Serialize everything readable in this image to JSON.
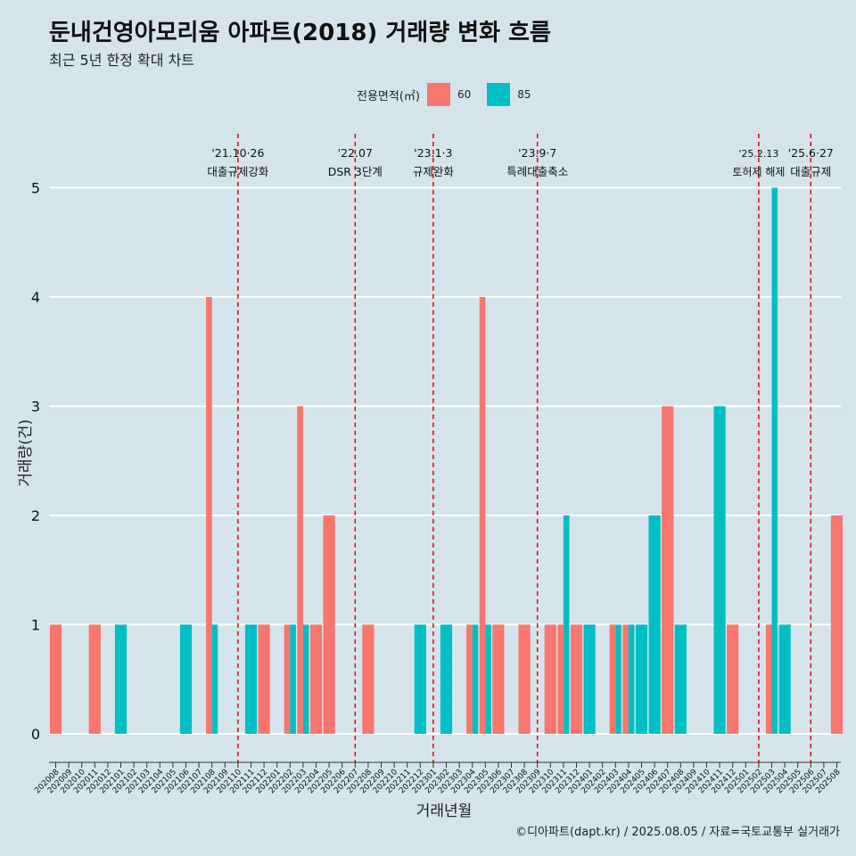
{
  "header": {
    "title": "둔내건영아모리움 아파트(2018) 거래량 변화 흐름",
    "subtitle": "최근 5년 한정 확대 차트"
  },
  "legend": {
    "title": "전용면적(㎡)",
    "items": [
      {
        "label": "60",
        "color": "#F8766D"
      },
      {
        "label": "85",
        "color": "#00BFC4"
      }
    ]
  },
  "caption": "©디아파트(dapt.kr) / 2025.08.05 / 자료=국토교통부 실거래가",
  "chart_data": {
    "type": "bar",
    "xlabel": "거래년월",
    "ylabel": "거래량(건)",
    "ylim": [
      0,
      5
    ],
    "yticks": [
      0,
      1,
      2,
      3,
      4,
      5
    ],
    "grid": true,
    "legend_position": "top",
    "categories": [
      "202008",
      "202009",
      "202010",
      "202011",
      "202012",
      "202101",
      "202102",
      "202103",
      "202104",
      "202105",
      "202106",
      "202107",
      "202108",
      "202109",
      "202110",
      "202111",
      "202112",
      "202201",
      "202202",
      "202203",
      "202204",
      "202205",
      "202206",
      "202207",
      "202208",
      "202209",
      "202210",
      "202211",
      "202212",
      "202301",
      "202302",
      "202303",
      "202304",
      "202305",
      "202306",
      "202307",
      "202308",
      "202309",
      "202310",
      "202311",
      "202312",
      "202401",
      "202402",
      "202403",
      "202404",
      "202405",
      "202406",
      "202407",
      "202408",
      "202409",
      "202410",
      "202411",
      "202412",
      "202501",
      "202502",
      "202503",
      "202504",
      "202505",
      "202506",
      "202507",
      "202508"
    ],
    "bars": [
      {
        "x": "202008",
        "series": "60",
        "value": 1
      },
      {
        "x": "202011",
        "series": "60",
        "value": 1
      },
      {
        "x": "202101",
        "series": "85",
        "value": 1
      },
      {
        "x": "202106",
        "series": "85",
        "value": 1
      },
      {
        "x": "202108",
        "series": "60",
        "value": 4
      },
      {
        "x": "202108",
        "series": "85",
        "value": 1
      },
      {
        "x": "202111",
        "series": "85",
        "value": 1
      },
      {
        "x": "202112",
        "series": "60",
        "value": 1
      },
      {
        "x": "202202",
        "series": "60",
        "value": 1
      },
      {
        "x": "202202",
        "series": "85",
        "value": 1
      },
      {
        "x": "202203",
        "series": "60",
        "value": 3
      },
      {
        "x": "202203",
        "series": "85",
        "value": 1
      },
      {
        "x": "202204",
        "series": "60",
        "value": 1
      },
      {
        "x": "202205",
        "series": "60",
        "value": 2
      },
      {
        "x": "202208",
        "series": "60",
        "value": 1
      },
      {
        "x": "202212",
        "series": "85",
        "value": 1
      },
      {
        "x": "202302",
        "series": "85",
        "value": 1
      },
      {
        "x": "202304",
        "series": "60",
        "value": 1
      },
      {
        "x": "202304",
        "series": "85",
        "value": 1
      },
      {
        "x": "202305",
        "series": "60",
        "value": 4
      },
      {
        "x": "202305",
        "series": "85",
        "value": 1
      },
      {
        "x": "202306",
        "series": "60",
        "value": 1
      },
      {
        "x": "202308",
        "series": "60",
        "value": 1
      },
      {
        "x": "202310",
        "series": "60",
        "value": 1
      },
      {
        "x": "202311",
        "series": "60",
        "value": 1
      },
      {
        "x": "202311",
        "series": "85",
        "value": 2
      },
      {
        "x": "202312",
        "series": "60",
        "value": 1
      },
      {
        "x": "202401",
        "series": "85",
        "value": 1
      },
      {
        "x": "202403",
        "series": "60",
        "value": 1
      },
      {
        "x": "202403",
        "series": "85",
        "value": 1
      },
      {
        "x": "202404",
        "series": "60",
        "value": 1
      },
      {
        "x": "202404",
        "series": "85",
        "value": 1
      },
      {
        "x": "202405",
        "series": "85",
        "value": 1
      },
      {
        "x": "202406",
        "series": "85",
        "value": 2
      },
      {
        "x": "202407",
        "series": "60",
        "value": 3
      },
      {
        "x": "202408",
        "series": "85",
        "value": 1
      },
      {
        "x": "202411",
        "series": "85",
        "value": 3
      },
      {
        "x": "202412",
        "series": "60",
        "value": 1
      },
      {
        "x": "202503",
        "series": "60",
        "value": 1
      },
      {
        "x": "202503",
        "series": "85",
        "value": 5
      },
      {
        "x": "202504",
        "series": "85",
        "value": 1
      },
      {
        "x": "202508",
        "series": "60",
        "value": 2
      }
    ],
    "annotations": [
      {
        "x": "202110",
        "line1": "'21.10·26",
        "line2": "대출규제강화"
      },
      {
        "x": "202207",
        "line1": "'22.07",
        "line2": "DSR 3단계"
      },
      {
        "x": "202301",
        "line1": "'23.1·3",
        "line2": "규제완화"
      },
      {
        "x": "202309",
        "line1": "'23.9·7",
        "line2": "특례대출축소"
      },
      {
        "x": "202502",
        "line1": "'25.2.13",
        "line2": "토허제 해제"
      },
      {
        "x": "202506",
        "line1": "'25.6·27",
        "line2": "대출규제"
      }
    ]
  }
}
